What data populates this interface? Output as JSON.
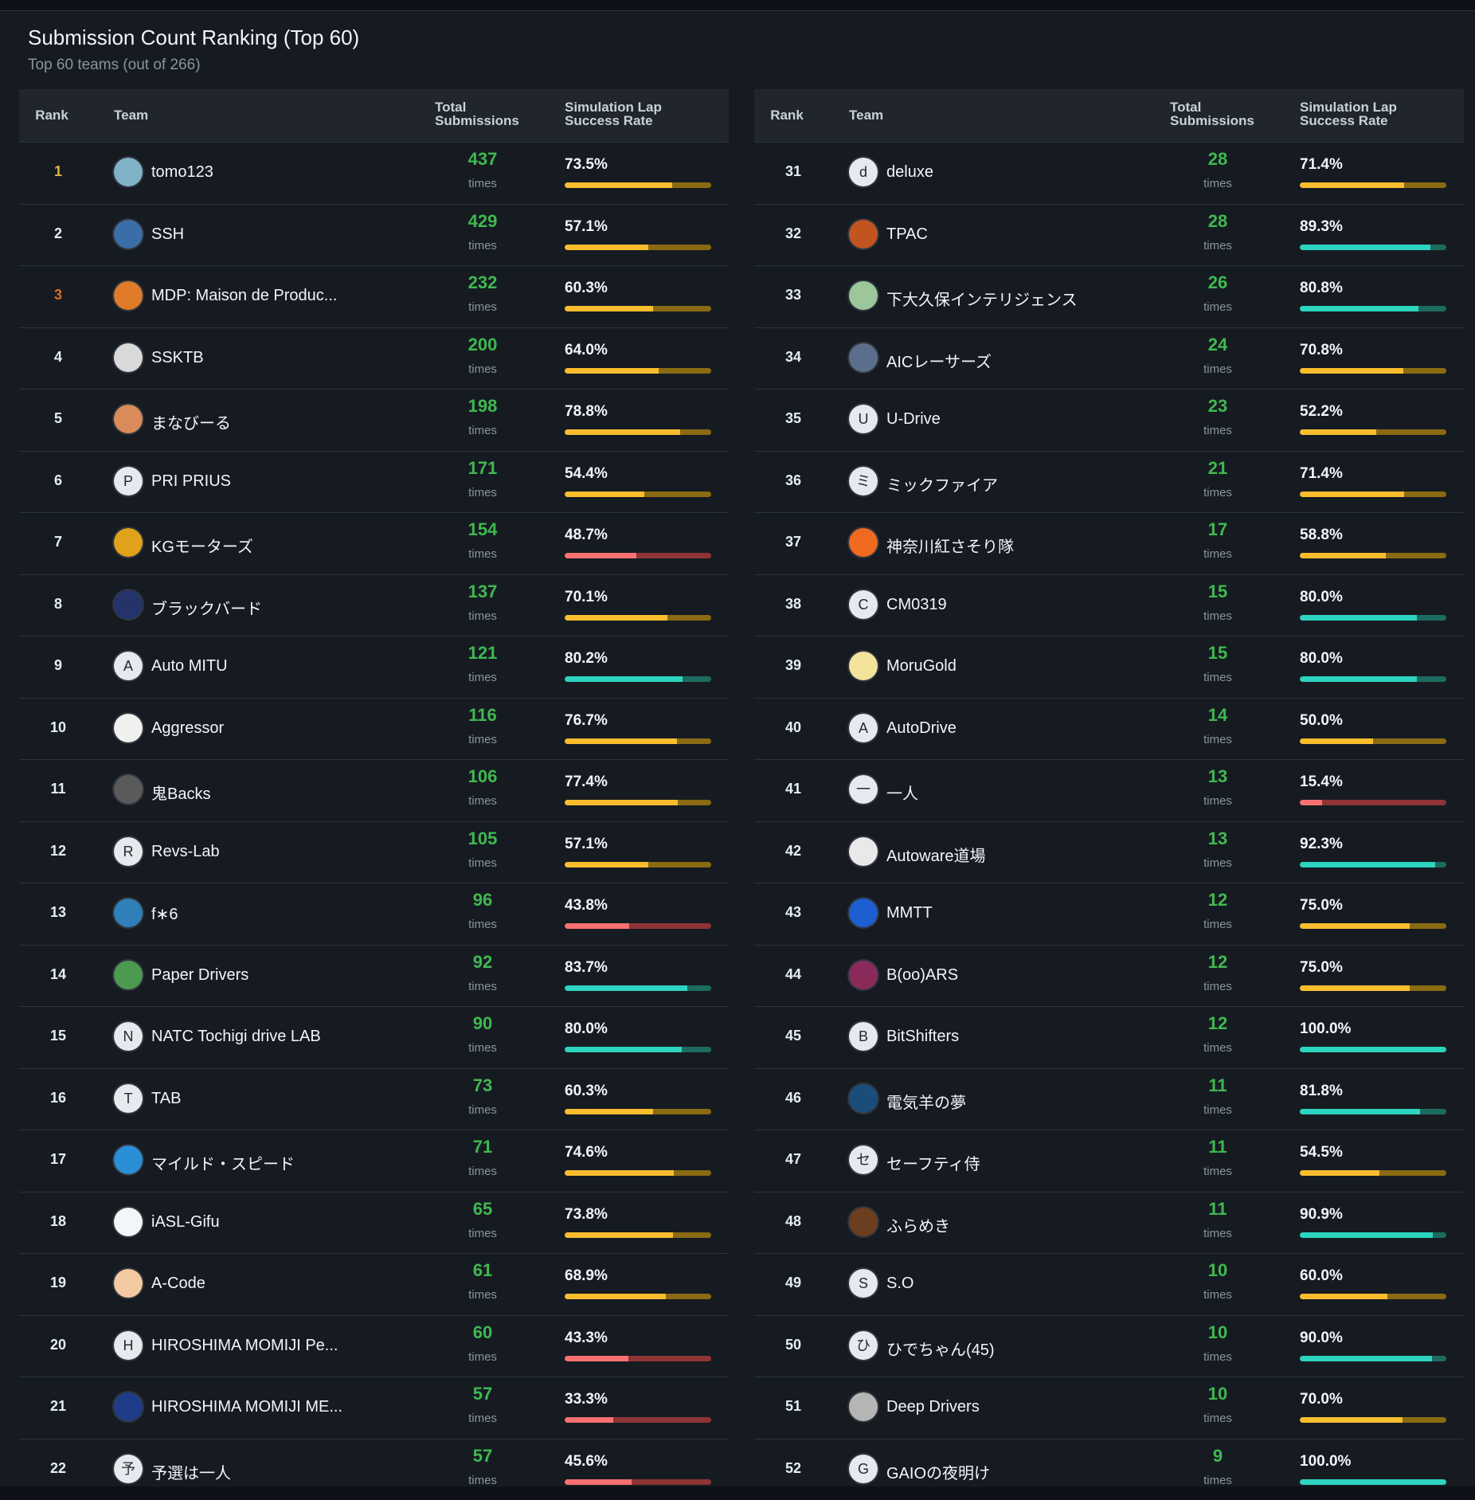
{
  "header": {
    "title": "Submission Count Ranking (Top 60)",
    "subtitle": "Top 60 teams (out of 266)"
  },
  "columns": {
    "rank": "Rank",
    "team": "Team",
    "total_line1": "Total",
    "total_line2": "Submissions",
    "rate_line1": "Simulation Lap",
    "rate_line2": "Success Rate"
  },
  "times_label": "times",
  "colors": {
    "count_green": "#3fb950",
    "bar_yellow": "#f9bd2e",
    "bar_red": "#f87171",
    "bar_teal": "#2dd4bf",
    "rank_gold": "#e3b341",
    "rank_bronze": "#db6d28"
  },
  "rows_left": [
    {
      "rank": "1",
      "name": "tomo123",
      "avatar": "car-avatar",
      "initial": "",
      "count": "437",
      "rate": "73.5%",
      "rate_value": 73.5,
      "bar": "y",
      "rank_color": "gold"
    },
    {
      "rank": "2",
      "name": "SSH",
      "avatar": "ocean-avatar",
      "initial": "",
      "count": "429",
      "rate": "57.1%",
      "rate_value": 57.1,
      "bar": "y"
    },
    {
      "rank": "3",
      "name": "MDP: Maison de Produc...",
      "avatar": "mdp-logo-avatar",
      "initial": "",
      "count": "232",
      "rate": "60.3%",
      "rate_value": 60.3,
      "bar": "y",
      "rank_color": "bronze"
    },
    {
      "rank": "4",
      "name": "SSKTB",
      "avatar": "bird-avatar",
      "initial": "",
      "count": "200",
      "rate": "64.0%",
      "rate_value": 64.0,
      "bar": "y"
    },
    {
      "rank": "5",
      "name": "まなびーる",
      "avatar": "character-avatar",
      "initial": "",
      "count": "198",
      "rate": "78.8%",
      "rate_value": 78.8,
      "bar": "y"
    },
    {
      "rank": "6",
      "name": "PRI PRIUS",
      "avatar": "",
      "initial": "P",
      "count": "171",
      "rate": "54.4%",
      "rate_value": 54.4,
      "bar": "y"
    },
    {
      "rank": "7",
      "name": "KGモーターズ",
      "avatar": "yellow-car-avatar",
      "initial": "",
      "count": "154",
      "rate": "48.7%",
      "rate_value": 48.7,
      "bar": "r"
    },
    {
      "rank": "8",
      "name": "ブラックバード",
      "avatar": "night-avatar",
      "initial": "",
      "count": "137",
      "rate": "70.1%",
      "rate_value": 70.1,
      "bar": "y"
    },
    {
      "rank": "9",
      "name": "Auto MITU",
      "avatar": "",
      "initial": "A",
      "count": "121",
      "rate": "80.2%",
      "rate_value": 80.2,
      "bar": "g"
    },
    {
      "rank": "10",
      "name": "Aggressor",
      "avatar": "emblem-avatar",
      "initial": "",
      "count": "116",
      "rate": "76.7%",
      "rate_value": 76.7,
      "bar": "y"
    },
    {
      "rank": "11",
      "name": "鬼Backs",
      "avatar": "pattern-avatar",
      "initial": "",
      "count": "106",
      "rate": "77.4%",
      "rate_value": 77.4,
      "bar": "y"
    },
    {
      "rank": "12",
      "name": "Revs-Lab",
      "avatar": "",
      "initial": "R",
      "count": "105",
      "rate": "57.1%",
      "rate_value": 57.1,
      "bar": "y"
    },
    {
      "rank": "13",
      "name": "f∗6",
      "avatar": "photo-avatar",
      "initial": "",
      "count": "96",
      "rate": "43.8%",
      "rate_value": 43.8,
      "bar": "r"
    },
    {
      "rank": "14",
      "name": "Paper Drivers",
      "avatar": "green-character-avatar",
      "initial": "",
      "count": "92",
      "rate": "83.7%",
      "rate_value": 83.7,
      "bar": "g"
    },
    {
      "rank": "15",
      "name": "NATC Tochigi drive LAB",
      "avatar": "",
      "initial": "N",
      "count": "90",
      "rate": "80.0%",
      "rate_value": 80.0,
      "bar": "g"
    },
    {
      "rank": "16",
      "name": "TAB",
      "avatar": "",
      "initial": "T",
      "count": "73",
      "rate": "60.3%",
      "rate_value": 60.3,
      "bar": "y"
    },
    {
      "rank": "17",
      "name": "マイルド・スピード",
      "avatar": "blue-splash-avatar",
      "initial": "",
      "count": "71",
      "rate": "74.6%",
      "rate_value": 74.6,
      "bar": "y"
    },
    {
      "rank": "18",
      "name": "iASL-Gifu",
      "avatar": "asl-logo-avatar",
      "initial": "",
      "count": "65",
      "rate": "73.8%",
      "rate_value": 73.8,
      "bar": "y"
    },
    {
      "rank": "19",
      "name": "A-Code",
      "avatar": "pet-avatar",
      "initial": "",
      "count": "61",
      "rate": "68.9%",
      "rate_value": 68.9,
      "bar": "y"
    },
    {
      "rank": "20",
      "name": "HIROSHIMA MOMIJI Pe...",
      "avatar": "",
      "initial": "H",
      "count": "60",
      "rate": "43.3%",
      "rate_value": 43.3,
      "bar": "r"
    },
    {
      "rank": "21",
      "name": "HIROSHIMA MOMIJI ME...",
      "avatar": "blue-logo-avatar",
      "initial": "",
      "count": "57",
      "rate": "33.3%",
      "rate_value": 33.3,
      "bar": "r"
    },
    {
      "rank": "22",
      "name": "予選は一人",
      "avatar": "",
      "initial": "予",
      "count": "57",
      "rate": "45.6%",
      "rate_value": 45.6,
      "bar": "r"
    }
  ],
  "rows_right": [
    {
      "rank": "31",
      "name": "deluxe",
      "avatar": "",
      "initial": "d",
      "count": "28",
      "rate": "71.4%",
      "rate_value": 71.4,
      "bar": "y"
    },
    {
      "rank": "32",
      "name": "TPAC",
      "avatar": "orange-emblem-avatar",
      "initial": "",
      "count": "28",
      "rate": "89.3%",
      "rate_value": 89.3,
      "bar": "g"
    },
    {
      "rank": "33",
      "name": "下大久保インテリジェンス",
      "avatar": "green-emblem-avatar",
      "initial": "",
      "count": "26",
      "rate": "80.8%",
      "rate_value": 80.8,
      "bar": "g"
    },
    {
      "rank": "34",
      "name": "AICレーサーズ",
      "avatar": "car-photo-avatar",
      "initial": "",
      "count": "24",
      "rate": "70.8%",
      "rate_value": 70.8,
      "bar": "y"
    },
    {
      "rank": "35",
      "name": "U-Drive",
      "avatar": "",
      "initial": "U",
      "count": "23",
      "rate": "52.2%",
      "rate_value": 52.2,
      "bar": "y"
    },
    {
      "rank": "36",
      "name": "ミックファイア",
      "avatar": "",
      "initial": "ミ",
      "count": "21",
      "rate": "71.4%",
      "rate_value": 71.4,
      "bar": "y"
    },
    {
      "rank": "37",
      "name": "神奈川紅さそり隊",
      "avatar": "scorpion-avatar",
      "initial": "",
      "count": "17",
      "rate": "58.8%",
      "rate_value": 58.8,
      "bar": "y"
    },
    {
      "rank": "38",
      "name": "CM0319",
      "avatar": "",
      "initial": "C",
      "count": "15",
      "rate": "80.0%",
      "rate_value": 80.0,
      "bar": "g"
    },
    {
      "rank": "39",
      "name": "MoruGold",
      "avatar": "chick-avatar",
      "initial": "",
      "count": "15",
      "rate": "80.0%",
      "rate_value": 80.0,
      "bar": "g"
    },
    {
      "rank": "40",
      "name": "AutoDrive",
      "avatar": "",
      "initial": "A",
      "count": "14",
      "rate": "50.0%",
      "rate_value": 50.0,
      "bar": "y"
    },
    {
      "rank": "41",
      "name": "一人",
      "avatar": "",
      "initial": "一",
      "count": "13",
      "rate": "15.4%",
      "rate_value": 15.4,
      "bar": "r"
    },
    {
      "rank": "42",
      "name": "Autoware道場",
      "avatar": "dojo-logo-avatar",
      "initial": "",
      "count": "13",
      "rate": "92.3%",
      "rate_value": 92.3,
      "bar": "g"
    },
    {
      "rank": "43",
      "name": "MMTT",
      "avatar": "mmtt-logo-avatar",
      "initial": "",
      "count": "12",
      "rate": "75.0%",
      "rate_value": 75.0,
      "bar": "y"
    },
    {
      "rank": "44",
      "name": "B(oo)ARS",
      "avatar": "bears-logo-avatar",
      "initial": "",
      "count": "12",
      "rate": "75.0%",
      "rate_value": 75.0,
      "bar": "y"
    },
    {
      "rank": "45",
      "name": "BitShifters",
      "avatar": "",
      "initial": "B",
      "count": "12",
      "rate": "100.0%",
      "rate_value": 100.0,
      "bar": "g"
    },
    {
      "rank": "46",
      "name": "電気羊の夢",
      "avatar": "sheep-avatar",
      "initial": "",
      "count": "11",
      "rate": "81.8%",
      "rate_value": 81.8,
      "bar": "g"
    },
    {
      "rank": "47",
      "name": "セーフティ侍",
      "avatar": "",
      "initial": "セ",
      "count": "11",
      "rate": "54.5%",
      "rate_value": 54.5,
      "bar": "y"
    },
    {
      "rank": "48",
      "name": "ふらめき",
      "avatar": "hat-avatar",
      "initial": "",
      "count": "11",
      "rate": "90.9%",
      "rate_value": 90.9,
      "bar": "g"
    },
    {
      "rank": "49",
      "name": "S.O",
      "avatar": "",
      "initial": "S",
      "count": "10",
      "rate": "60.0%",
      "rate_value": 60.0,
      "bar": "y"
    },
    {
      "rank": "50",
      "name": "ひでちゃん(45)",
      "avatar": "",
      "initial": "ひ",
      "count": "10",
      "rate": "90.0%",
      "rate_value": 90.0,
      "bar": "g"
    },
    {
      "rank": "51",
      "name": "Deep Drivers",
      "avatar": "horse-avatar",
      "initial": "",
      "count": "10",
      "rate": "70.0%",
      "rate_value": 70.0,
      "bar": "y"
    },
    {
      "rank": "52",
      "name": "GAIOの夜明け",
      "avatar": "",
      "initial": "G",
      "count": "9",
      "rate": "100.0%",
      "rate_value": 100.0,
      "bar": "g"
    }
  ]
}
